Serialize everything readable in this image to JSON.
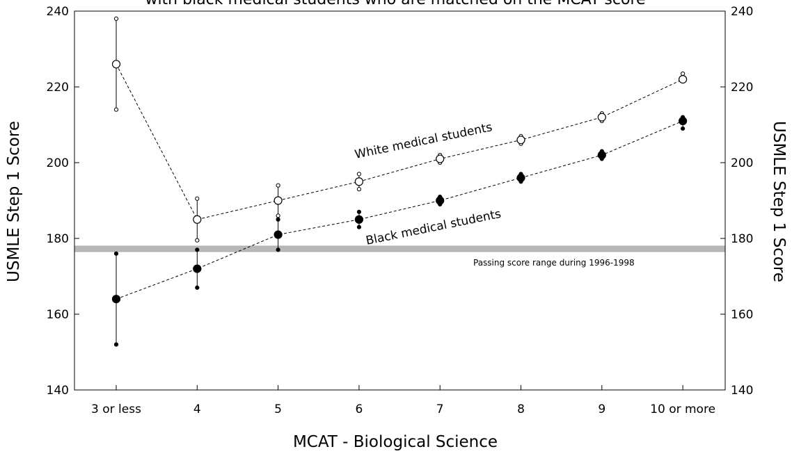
{
  "chart_data": {
    "type": "line",
    "title": "with black medical students who are matched on the MCAT score",
    "xlabel": "MCAT - Biological Science",
    "ylabel_left": "USMLE Step 1 Score",
    "ylabel_right": "USMLE Step 1 Score",
    "categories": [
      "3 or less",
      "4",
      "5",
      "6",
      "7",
      "8",
      "9",
      "10 or more"
    ],
    "ylim": [
      140,
      240
    ],
    "yticks": [
      140,
      160,
      180,
      200,
      220,
      240
    ],
    "grid": false,
    "series": [
      {
        "name": "White medical students",
        "marker": "open-circle",
        "values": [
          226,
          185,
          190,
          195,
          201,
          206,
          212,
          222
        ],
        "upper": [
          238,
          190.5,
          194,
          197,
          202,
          207,
          213,
          223.5
        ],
        "lower": [
          214,
          179.5,
          186,
          193,
          200,
          205,
          211,
          221.5
        ]
      },
      {
        "name": "Black medical students",
        "marker": "filled-circle",
        "values": [
          164,
          172,
          181,
          185,
          190,
          196,
          202,
          211
        ],
        "upper": [
          176,
          177,
          185,
          187,
          191,
          197,
          203,
          212
        ],
        "lower": [
          152,
          167,
          177,
          183,
          189,
          195,
          201,
          209
        ]
      }
    ],
    "annotations": [
      {
        "text": "Passing score range during 1996-1998",
        "band": [
          176.5,
          178
        ]
      }
    ],
    "colors": {
      "band": "#b8b8b8",
      "line": "#000000"
    }
  }
}
